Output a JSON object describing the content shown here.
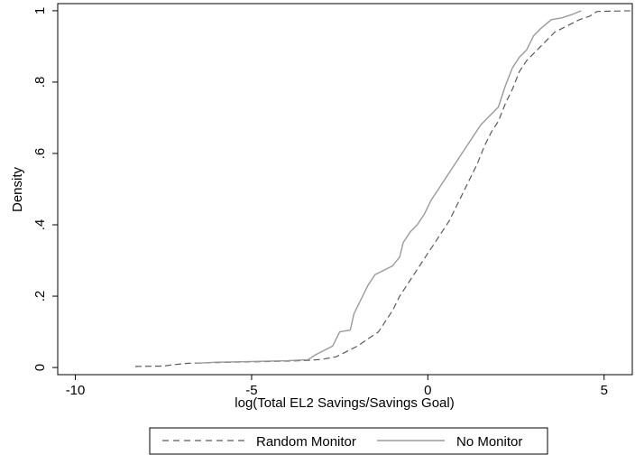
{
  "chart_data": {
    "type": "line",
    "title": "",
    "xlabel": "log(Total EL2 Savings/Savings Goal)",
    "ylabel": "Density",
    "xlim": [
      -10.5,
      5.8
    ],
    "ylim": [
      -0.02,
      1.02
    ],
    "x_ticks": [
      {
        "value": -10,
        "label": "-10"
      },
      {
        "value": -5,
        "label": "-5"
      },
      {
        "value": 0,
        "label": "0"
      },
      {
        "value": 5,
        "label": "5"
      }
    ],
    "y_ticks": [
      {
        "value": 0,
        "label": "0"
      },
      {
        "value": 0.2,
        "label": ".2"
      },
      {
        "value": 0.4,
        "label": ".4"
      },
      {
        "value": 0.6,
        "label": ".6"
      },
      {
        "value": 0.8,
        "label": ".8"
      },
      {
        "value": 1,
        "label": "1"
      }
    ],
    "grid": false,
    "legend_position": "bottom",
    "series": [
      {
        "name": "Random Monitor",
        "style": "dashed",
        "color": "#5a5a5a",
        "points": [
          [
            -8.3,
            0.003
          ],
          [
            -7.5,
            0.004
          ],
          [
            -7.2,
            0.008
          ],
          [
            -6.8,
            0.012
          ],
          [
            -6.0,
            0.014
          ],
          [
            -5.0,
            0.016
          ],
          [
            -4.0,
            0.018
          ],
          [
            -3.4,
            0.02
          ],
          [
            -3.0,
            0.023
          ],
          [
            -2.6,
            0.03
          ],
          [
            -2.3,
            0.045
          ],
          [
            -2.0,
            0.06
          ],
          [
            -1.7,
            0.08
          ],
          [
            -1.4,
            0.1
          ],
          [
            -1.2,
            0.13
          ],
          [
            -1.0,
            0.16
          ],
          [
            -0.8,
            0.2
          ],
          [
            -0.6,
            0.23
          ],
          [
            -0.4,
            0.26
          ],
          [
            -0.2,
            0.29
          ],
          [
            0.0,
            0.32
          ],
          [
            0.2,
            0.35
          ],
          [
            0.4,
            0.38
          ],
          [
            0.6,
            0.41
          ],
          [
            0.8,
            0.45
          ],
          [
            1.0,
            0.49
          ],
          [
            1.2,
            0.53
          ],
          [
            1.4,
            0.57
          ],
          [
            1.6,
            0.62
          ],
          [
            1.8,
            0.66
          ],
          [
            2.0,
            0.69
          ],
          [
            2.2,
            0.74
          ],
          [
            2.4,
            0.78
          ],
          [
            2.6,
            0.83
          ],
          [
            2.8,
            0.86
          ],
          [
            3.0,
            0.88
          ],
          [
            3.3,
            0.91
          ],
          [
            3.6,
            0.94
          ],
          [
            4.0,
            0.96
          ],
          [
            4.3,
            0.975
          ],
          [
            4.6,
            0.985
          ],
          [
            4.8,
            0.998
          ],
          [
            5.3,
            0.999
          ],
          [
            5.8,
            1.0
          ]
        ]
      },
      {
        "name": "No Monitor",
        "style": "solid",
        "color": "#9a9a9a",
        "points": [
          [
            -6.6,
            0.012
          ],
          [
            -6.0,
            0.015
          ],
          [
            -5.0,
            0.017
          ],
          [
            -4.0,
            0.019
          ],
          [
            -3.4,
            0.022
          ],
          [
            -3.2,
            0.035
          ],
          [
            -3.0,
            0.045
          ],
          [
            -2.7,
            0.06
          ],
          [
            -2.5,
            0.1
          ],
          [
            -2.2,
            0.105
          ],
          [
            -2.1,
            0.15
          ],
          [
            -1.9,
            0.19
          ],
          [
            -1.7,
            0.23
          ],
          [
            -1.5,
            0.26
          ],
          [
            -1.3,
            0.27
          ],
          [
            -1.0,
            0.285
          ],
          [
            -0.8,
            0.31
          ],
          [
            -0.7,
            0.35
          ],
          [
            -0.5,
            0.38
          ],
          [
            -0.3,
            0.4
          ],
          [
            -0.1,
            0.43
          ],
          [
            0.1,
            0.47
          ],
          [
            0.3,
            0.5
          ],
          [
            0.5,
            0.53
          ],
          [
            0.7,
            0.56
          ],
          [
            0.9,
            0.59
          ],
          [
            1.1,
            0.62
          ],
          [
            1.3,
            0.65
          ],
          [
            1.5,
            0.68
          ],
          [
            1.8,
            0.71
          ],
          [
            2.0,
            0.73
          ],
          [
            2.2,
            0.79
          ],
          [
            2.4,
            0.84
          ],
          [
            2.6,
            0.87
          ],
          [
            2.8,
            0.89
          ],
          [
            3.0,
            0.93
          ],
          [
            3.2,
            0.95
          ],
          [
            3.5,
            0.975
          ],
          [
            3.8,
            0.98
          ],
          [
            4.1,
            0.99
          ],
          [
            4.35,
            1.0
          ]
        ]
      }
    ]
  }
}
